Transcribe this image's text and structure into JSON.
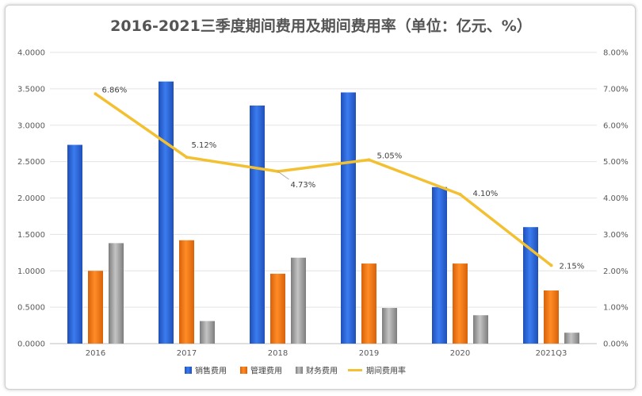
{
  "chart_data": {
    "type": "bar",
    "title": "2016-2021三季度期间费用及期间费用率（单位：亿元、%）",
    "categories": [
      "2016",
      "2017",
      "2018",
      "2019",
      "2020",
      "2021Q3"
    ],
    "y_left": {
      "ticks": [
        "0.0000",
        "0.5000",
        "1.0000",
        "1.5000",
        "2.0000",
        "2.5000",
        "3.0000",
        "3.5000",
        "4.0000"
      ],
      "ylim": [
        0,
        4
      ]
    },
    "y_right": {
      "ticks": [
        "0.00%",
        "1.00%",
        "2.00%",
        "3.00%",
        "4.00%",
        "5.00%",
        "6.00%",
        "7.00%",
        "8.00%"
      ],
      "ylim": [
        0,
        8
      ]
    },
    "series": [
      {
        "name": "销售费用",
        "type": "bar",
        "axis": "left",
        "color": "#2e64d6",
        "values": [
          2.73,
          3.6,
          3.27,
          3.45,
          2.15,
          1.6
        ]
      },
      {
        "name": "管理费用",
        "type": "bar",
        "axis": "left",
        "color": "#f07818",
        "values": [
          1.0,
          1.42,
          0.96,
          1.1,
          1.1,
          0.73
        ]
      },
      {
        "name": "财务费用",
        "type": "bar",
        "axis": "left",
        "color": "#a0a0a0",
        "values": [
          1.38,
          0.31,
          1.18,
          0.49,
          0.39,
          0.15
        ]
      },
      {
        "name": "期间费用率",
        "type": "line",
        "axis": "right",
        "color": "#f2c030",
        "values": [
          6.86,
          5.12,
          4.73,
          5.05,
          4.1,
          2.15
        ],
        "labels": [
          "6.86%",
          "5.12%",
          "4.73%",
          "5.05%",
          "4.10%",
          "2.15%"
        ]
      }
    ],
    "grid": true,
    "legend_position": "bottom"
  }
}
